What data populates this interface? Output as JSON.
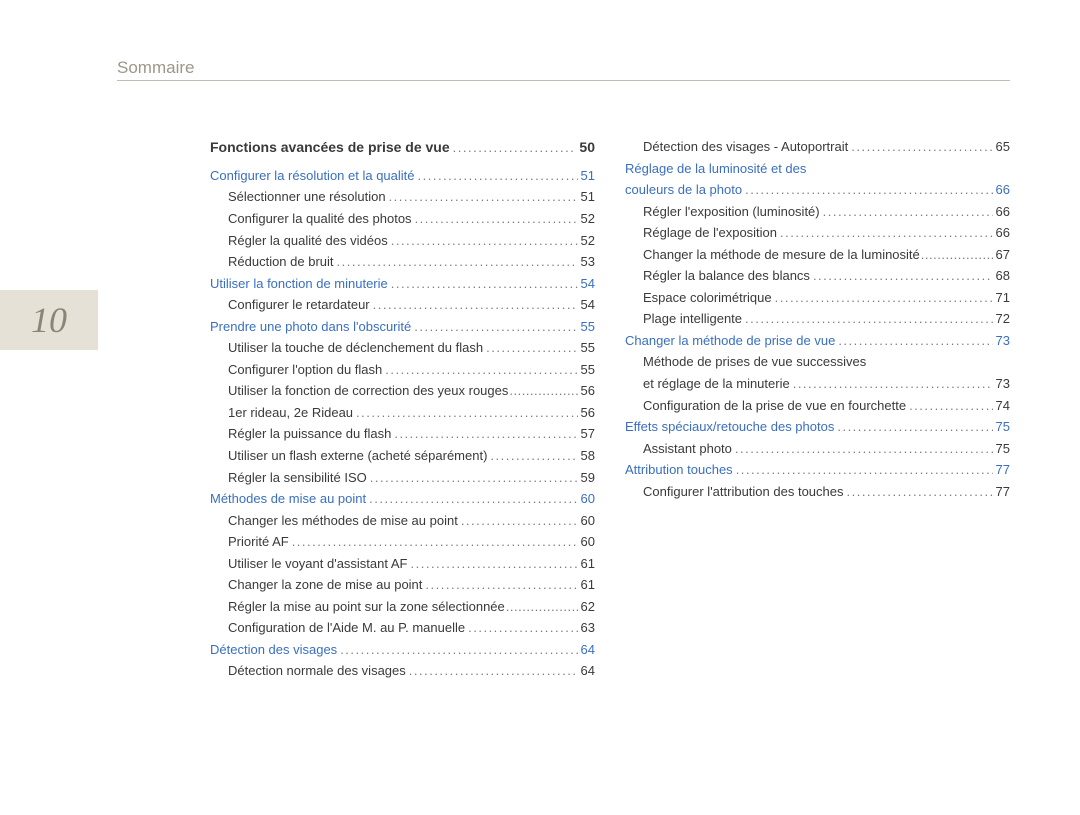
{
  "header": {
    "title": "Sommaire"
  },
  "page_tab": {
    "number": "10"
  },
  "col_left": [
    {
      "type": "chapter",
      "label": "Fonctions avancées de prise de vue",
      "page": "50"
    },
    {
      "type": "gap"
    },
    {
      "type": "section",
      "label": "Configurer la résolution et la qualité",
      "page": "51"
    },
    {
      "type": "sub",
      "label": "Sélectionner une résolution",
      "page": "51"
    },
    {
      "type": "sub",
      "label": "Configurer la qualité des photos",
      "page": "52"
    },
    {
      "type": "sub",
      "label": "Régler la qualité des vidéos",
      "page": "52"
    },
    {
      "type": "sub",
      "label": "Réduction de bruit",
      "page": "53"
    },
    {
      "type": "section",
      "label": "Utiliser la fonction de minuterie",
      "page": "54"
    },
    {
      "type": "sub",
      "label": "Configurer le retardateur",
      "page": "54"
    },
    {
      "type": "section",
      "label": "Prendre une photo dans l'obscurité",
      "page": "55"
    },
    {
      "type": "sub",
      "label": "Utiliser la touche de déclenchement du flash",
      "page": "55"
    },
    {
      "type": "sub",
      "label": "Configurer l'option du flash",
      "page": "55"
    },
    {
      "type": "sub",
      "label": "Utiliser la fonction de correction des yeux rouges",
      "page": "56",
      "tight": true
    },
    {
      "type": "sub",
      "label": "1er rideau, 2e Rideau",
      "page": "56"
    },
    {
      "type": "sub",
      "label": "Régler la puissance du flash",
      "page": "57"
    },
    {
      "type": "sub",
      "label": "Utiliser un flash externe (acheté séparément)",
      "page": "58"
    },
    {
      "type": "sub",
      "label": "Régler la sensibilité ISO",
      "page": "59"
    },
    {
      "type": "section",
      "label": "Méthodes de mise au point",
      "page": "60"
    },
    {
      "type": "sub",
      "label": "Changer les méthodes de mise au point",
      "page": "60"
    },
    {
      "type": "sub",
      "label": "Priorité AF",
      "page": "60"
    },
    {
      "type": "sub",
      "label": "Utiliser le voyant d'assistant AF",
      "page": "61"
    },
    {
      "type": "sub",
      "label": "Changer la zone de mise au point",
      "page": "61"
    },
    {
      "type": "sub",
      "label": "Régler la mise au point sur la zone sélectionnée",
      "page": "62",
      "tight": true
    },
    {
      "type": "sub",
      "label": "Configuration de l'Aide M. au P. manuelle",
      "page": "63"
    },
    {
      "type": "section",
      "label": "Détection des visages",
      "page": "64"
    },
    {
      "type": "sub",
      "label": "Détection normale des visages",
      "page": "64"
    }
  ],
  "col_right": [
    {
      "type": "sub",
      "label": "Détection des visages - Autoportrait",
      "page": "65"
    },
    {
      "type": "section",
      "label": "Réglage de la luminosité et des",
      "noleader": true
    },
    {
      "type": "section",
      "label": "couleurs de la photo",
      "page": "66"
    },
    {
      "type": "sub",
      "label": "Régler l'exposition (luminosité)",
      "page": "66"
    },
    {
      "type": "sub",
      "label": "Réglage de l'exposition",
      "page": "66"
    },
    {
      "type": "sub",
      "label": "Changer la méthode de mesure de la luminosité",
      "page": "67",
      "tight": true
    },
    {
      "type": "sub",
      "label": "Régler la balance des blancs",
      "page": "68"
    },
    {
      "type": "sub",
      "label": "Espace colorimétrique",
      "page": "71"
    },
    {
      "type": "sub",
      "label": "Plage intelligente",
      "page": "72"
    },
    {
      "type": "section",
      "label": "Changer la méthode de prise de vue",
      "page": "73"
    },
    {
      "type": "sub",
      "label": "Méthode de prises de vue successives",
      "noleader": true
    },
    {
      "type": "sub",
      "label": "et réglage de la minuterie",
      "page": "73"
    },
    {
      "type": "sub",
      "label": "Configuration de la prise de vue en fourchette",
      "page": "74"
    },
    {
      "type": "section",
      "label": "Effets spéciaux/retouche des photos",
      "page": "75"
    },
    {
      "type": "sub",
      "label": "Assistant photo",
      "page": "75"
    },
    {
      "type": "section",
      "label": "Attribution touches",
      "page": "77"
    },
    {
      "type": "sub",
      "label": "Configurer l'attribution des touches",
      "page": "77"
    }
  ],
  "colors": {
    "bg": "#ffffff",
    "tab_bg": "#e5e1d6",
    "tab_text": "#8a8676",
    "header_text": "#9b9789",
    "header_rule": "#c0bdb4",
    "link": "#3a6fbf",
    "body_text": "#3a3a3a"
  }
}
